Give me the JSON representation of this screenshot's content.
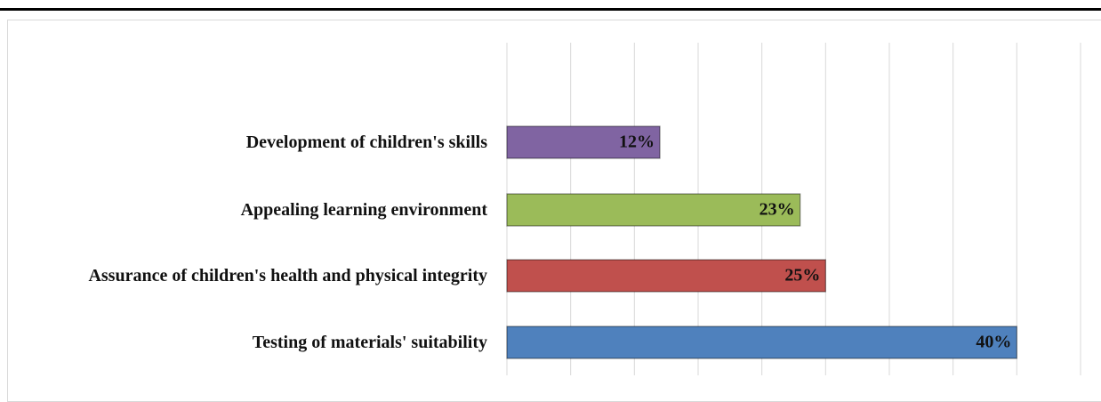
{
  "chart_data": {
    "type": "barh",
    "categories": [
      "Development of children's skills",
      "Appealing learning environment",
      "Assurance of children's health and physical integrity",
      "Testing of materials' suitability"
    ],
    "values": [
      12,
      23,
      25,
      40
    ],
    "value_labels": [
      "12%",
      "23%",
      "25%",
      "40%"
    ],
    "colors": [
      "#8064a2",
      "#9bbb59",
      "#c0504d",
      "#4f81bd"
    ],
    "xlim": [
      0,
      45
    ],
    "xticks": [
      0,
      5,
      10,
      15,
      20,
      25,
      30,
      35,
      40,
      45
    ],
    "grid": true
  }
}
